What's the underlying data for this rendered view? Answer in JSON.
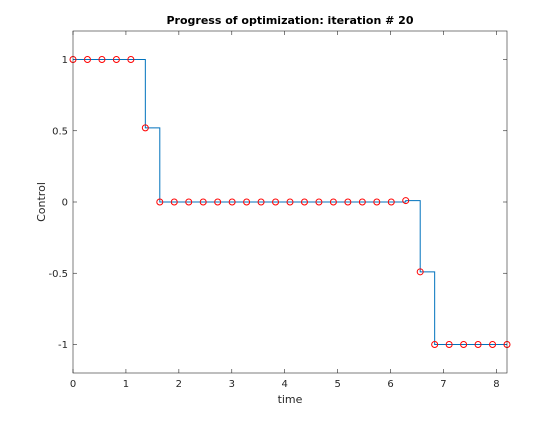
{
  "chart_data": {
    "type": "line",
    "title": "Progress of optimization: iteration # 20",
    "xlabel": "time",
    "ylabel": "Control",
    "xlim": [
      0,
      8.2
    ],
    "ylim": [
      -1.2,
      1.2
    ],
    "xticks": [
      0,
      1,
      2,
      3,
      4,
      5,
      6,
      7,
      8
    ],
    "xtick_labels": [
      "0",
      "1",
      "2",
      "3",
      "4",
      "5",
      "6",
      "7",
      "8"
    ],
    "yticks": [
      1,
      0.5,
      0,
      -0.5,
      -1
    ],
    "ytick_labels": [
      "1",
      "0.5",
      "0",
      "-0.5",
      "-1"
    ],
    "grid": false,
    "legend": "none",
    "series": [
      {
        "kind": "stairs",
        "color": "#0072bd",
        "x": [
          0,
          0.2733,
          0.5467,
          0.82,
          1.0933,
          1.3667,
          1.64,
          1.9133,
          2.1867,
          2.46,
          2.7333,
          3.0067,
          3.28,
          3.5533,
          3.8267,
          4.1,
          4.3733,
          4.6467,
          4.92,
          5.1933,
          5.4667,
          5.74,
          6.0133,
          6.2867,
          6.56,
          6.8333,
          7.1067,
          7.38,
          7.6533,
          7.9267,
          8.2
        ],
        "y": [
          1,
          1,
          1,
          1,
          1,
          0.52,
          0,
          0,
          0,
          0,
          0,
          0,
          0,
          0,
          0,
          0,
          0,
          0,
          0,
          0,
          0,
          0,
          0,
          0.01,
          -0.49,
          -1,
          -1,
          -1,
          -1,
          -1,
          -1
        ]
      },
      {
        "kind": "markers",
        "marker": "circle",
        "color": "#ff0000",
        "x": [
          0,
          0.2733,
          0.5467,
          0.82,
          1.0933,
          1.3667,
          1.64,
          1.9133,
          2.1867,
          2.46,
          2.7333,
          3.0067,
          3.28,
          3.5533,
          3.8267,
          4.1,
          4.3733,
          4.6467,
          4.92,
          5.1933,
          5.4667,
          5.74,
          6.0133,
          6.2867,
          6.56,
          6.8333,
          7.1067,
          7.38,
          7.6533,
          7.9267,
          8.2
        ],
        "y": [
          1,
          1,
          1,
          1,
          1,
          0.52,
          0,
          0,
          0,
          0,
          0,
          0,
          0,
          0,
          0,
          0,
          0,
          0,
          0,
          0,
          0,
          0,
          0,
          0.01,
          -0.49,
          -1,
          -1,
          -1,
          -1,
          -1,
          -1
        ]
      }
    ],
    "colors": {
      "axis": "#262626",
      "background": "#ffffff"
    }
  }
}
